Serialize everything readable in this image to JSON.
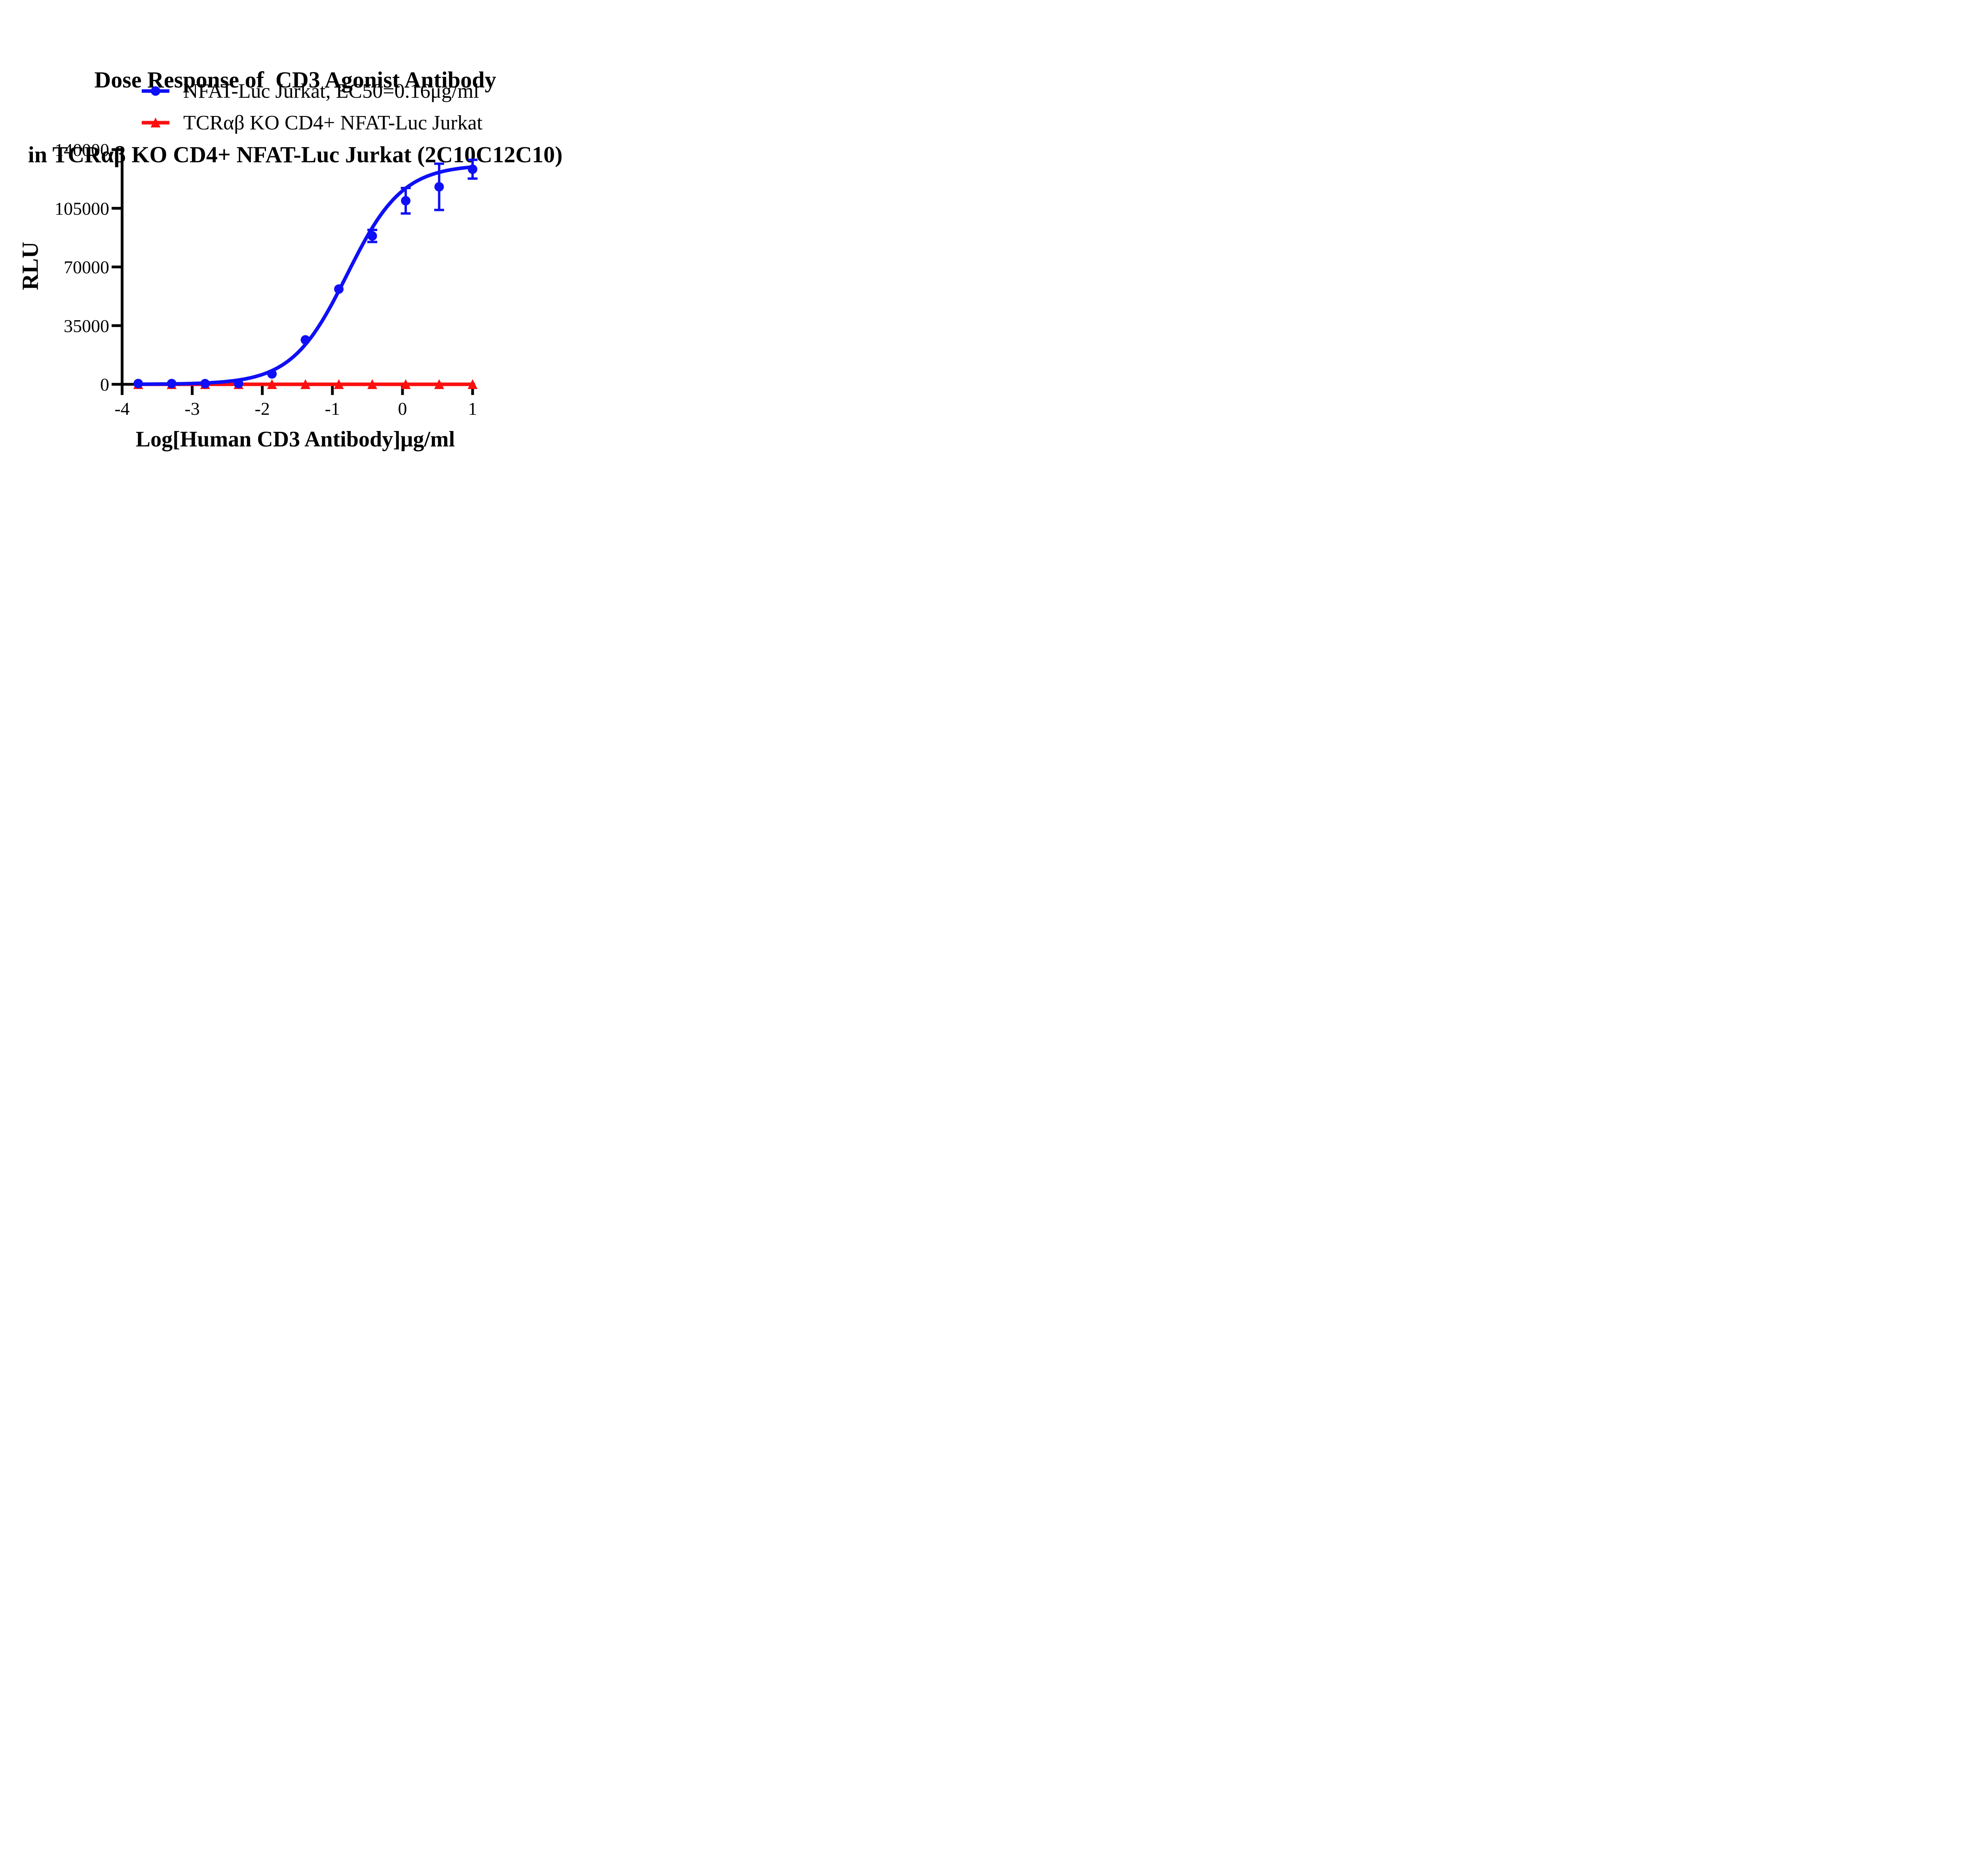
{
  "colors": {
    "background": "#ffffff",
    "axis": "#000000",
    "text": "#000000",
    "series_blue": "#0f0ff7",
    "series_red": "#fb0f0f"
  },
  "chart_data": {
    "type": "line",
    "title_line1": "Dose Response of  CD3 Agonist Antibody",
    "title_line2": "in TCRαβ KO CD4+ NFAT-Luc Jurkat (2C10C12C10)",
    "xlabel": "Log[Human CD3 Antibody]μg/ml",
    "ylabel": "RLU",
    "x_ticks": [
      -4,
      -3,
      -2,
      -1,
      0,
      1
    ],
    "y_ticks": [
      0,
      35000,
      70000,
      105000,
      140000
    ],
    "xlim": [
      -4,
      1.1
    ],
    "ylim": [
      0,
      140000
    ],
    "grid": false,
    "legend_position": "top-center",
    "series": [
      {
        "name": "NFAT-Luc Jurkat, EC50=0.16μg/ml",
        "color": "#0f0ff7",
        "marker": "circle",
        "x": [
          -3.77,
          -3.293,
          -2.816,
          -2.339,
          -1.862,
          -1.385,
          -0.908,
          -0.431,
          0.046,
          0.523,
          1.0
        ],
        "y": [
          450,
          450,
          400,
          450,
          6200,
          26500,
          56800,
          88500,
          109500,
          117800,
          128300
        ],
        "yerr": [
          0,
          0,
          0,
          0,
          0,
          0,
          0,
          3600,
          7600,
          13800,
          5600
        ],
        "fit": {
          "model": "4PL",
          "bottom": 0,
          "top": 131000,
          "logEC50": -0.79,
          "hill": 1.1
        },
        "ec50_label": "EC50=0.16μg/ml"
      },
      {
        "name": "TCRαβ KO CD4+ NFAT-Luc Jurkat",
        "color": "#fb0f0f",
        "marker": "triangle",
        "x": [
          -3.77,
          -3.293,
          -2.816,
          -2.339,
          -1.862,
          -1.385,
          -0.908,
          -0.431,
          0.046,
          0.523,
          1.0
        ],
        "y": [
          0,
          0,
          0,
          0,
          0,
          0,
          0,
          0,
          0,
          0,
          0
        ],
        "yerr": [
          0,
          0,
          0,
          0,
          0,
          0,
          0,
          0,
          0,
          0,
          0
        ],
        "fit": {
          "model": "flat",
          "value": 0
        }
      }
    ]
  }
}
